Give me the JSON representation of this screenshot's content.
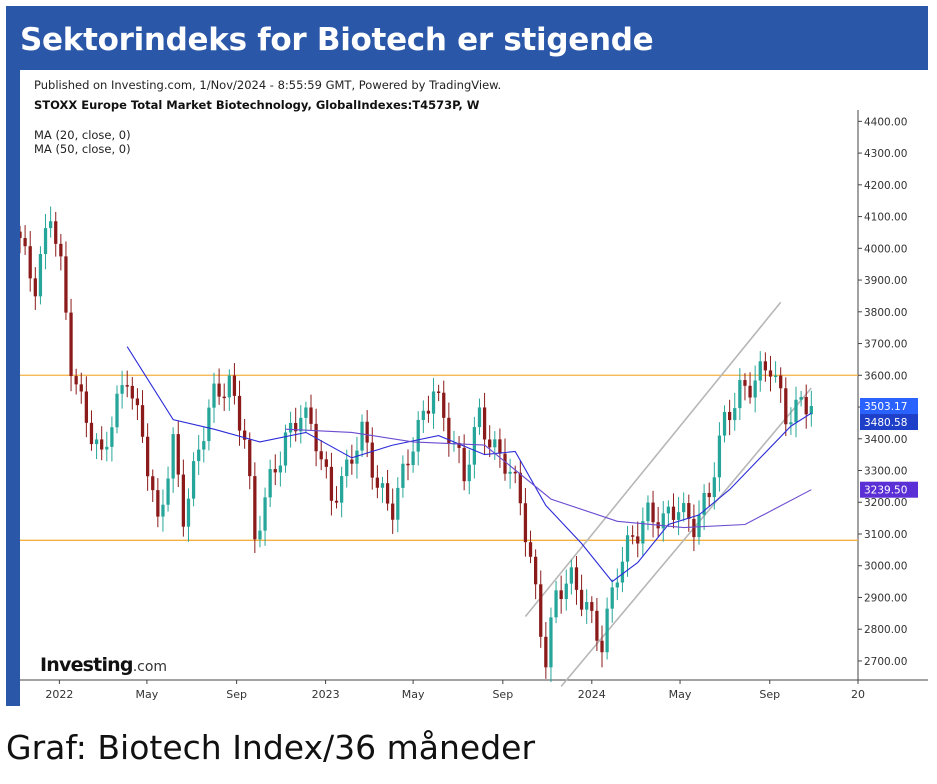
{
  "header": {
    "title": "Sektorindeks for Biotech er stigende"
  },
  "source": {
    "published": "Published on Investing.com, 1/Nov/2024 - 8:55:59 GMT, Powered by TradingView.",
    "symbol": "STOXX Europe Total Market Biotechnology, GlobalIndexes:T4573P, W",
    "indicators": [
      "MA (20, close, 0)",
      "MA (50, close, 0)"
    ],
    "logo_main": "Investing",
    "logo_suffix": ".com"
  },
  "caption": "Graf: Biotech Index/36 måneder",
  "colors": {
    "up": "#26a69a",
    "down": "#8b1a1a",
    "ma20": "#2b2bd9",
    "ma50": "#6b4bd0",
    "hline": "#f5b041",
    "trendline": "#b7b7b7",
    "last_price_tag": "#2962ff",
    "ma20_tag": "#1e40c8",
    "ma50_tag": "#5a2fd6"
  },
  "chart_data": {
    "type": "candlestick",
    "interval": "W",
    "ylim": [
      2640,
      4420
    ],
    "y_axis_position": "right",
    "y_ticks": [
      "4400.00",
      "4300.00",
      "4200.00",
      "4100.00",
      "4000.00",
      "3900.00",
      "3800.00",
      "3700.00",
      "3600.00",
      "3500.00",
      "3400.00",
      "3300.00",
      "3200.00",
      "3100.00",
      "3000.00",
      "2900.00",
      "2800.00",
      "2700.00"
    ],
    "x_range": [
      "2021-11-08",
      "2024-12-31"
    ],
    "x_ticks": [
      {
        "label": "2022",
        "date": "2022-01-01"
      },
      {
        "label": "May",
        "date": "2022-05-01"
      },
      {
        "label": "Sep",
        "date": "2022-09-01"
      },
      {
        "label": "2023",
        "date": "2023-01-01"
      },
      {
        "label": "May",
        "date": "2023-05-01"
      },
      {
        "label": "Sep",
        "date": "2023-09-01"
      },
      {
        "label": "2024",
        "date": "2024-01-01"
      },
      {
        "label": "May",
        "date": "2024-05-01"
      },
      {
        "label": "Sep",
        "date": "2024-09-01"
      },
      {
        "label": "20",
        "date": "2024-12-31"
      }
    ],
    "horizontal_lines": [
      3600,
      3080
    ],
    "channel_lines": [
      {
        "from": [
          "2023-10-02",
          2840
        ],
        "to": [
          "2024-09-16",
          3830
        ]
      },
      {
        "from": [
          "2023-11-20",
          2620
        ],
        "to": [
          "2024-10-28",
          3560
        ]
      }
    ],
    "price_labels": [
      {
        "text": "3503.17",
        "value": 3503.17,
        "role": "last"
      },
      {
        "text": "3480.58",
        "value": 3480.58,
        "role": "ma20"
      },
      {
        "text": "3239.50",
        "value": 3239.5,
        "role": "ma50"
      }
    ],
    "closes": [
      {
        "date": "2021-11-08",
        "close": 4030
      },
      {
        "date": "2021-11-29",
        "close": 3900
      },
      {
        "date": "2021-12-20",
        "close": 4100
      },
      {
        "date": "2022-01-03",
        "close": 3920
      },
      {
        "date": "2022-01-17",
        "close": 3640
      },
      {
        "date": "2022-02-07",
        "close": 3480
      },
      {
        "date": "2022-02-28",
        "close": 3320
      },
      {
        "date": "2022-03-21",
        "close": 3500
      },
      {
        "date": "2022-04-04",
        "close": 3620
      },
      {
        "date": "2022-04-25",
        "close": 3420
      },
      {
        "date": "2022-05-16",
        "close": 3100
      },
      {
        "date": "2022-06-06",
        "close": 3390
      },
      {
        "date": "2022-06-20",
        "close": 3180
      },
      {
        "date": "2022-07-11",
        "close": 3360
      },
      {
        "date": "2022-08-01",
        "close": 3520
      },
      {
        "date": "2022-08-22",
        "close": 3590
      },
      {
        "date": "2022-09-12",
        "close": 3420
      },
      {
        "date": "2022-09-26",
        "close": 3060
      },
      {
        "date": "2022-10-17",
        "close": 3260
      },
      {
        "date": "2022-11-07",
        "close": 3420
      },
      {
        "date": "2022-11-28",
        "close": 3480
      },
      {
        "date": "2022-12-19",
        "close": 3380
      },
      {
        "date": "2023-01-09",
        "close": 3230
      },
      {
        "date": "2023-01-30",
        "close": 3310
      },
      {
        "date": "2023-02-20",
        "close": 3400
      },
      {
        "date": "2023-03-13",
        "close": 3260
      },
      {
        "date": "2023-04-03",
        "close": 3200
      },
      {
        "date": "2023-04-24",
        "close": 3320
      },
      {
        "date": "2023-05-15",
        "close": 3460
      },
      {
        "date": "2023-05-29",
        "close": 3580
      },
      {
        "date": "2023-06-19",
        "close": 3430
      },
      {
        "date": "2023-07-10",
        "close": 3260
      },
      {
        "date": "2023-07-31",
        "close": 3480
      },
      {
        "date": "2023-08-21",
        "close": 3380
      },
      {
        "date": "2023-09-04",
        "close": 3320
      },
      {
        "date": "2023-09-25",
        "close": 3190
      },
      {
        "date": "2023-10-16",
        "close": 2930
      },
      {
        "date": "2023-10-30",
        "close": 2720
      },
      {
        "date": "2023-11-13",
        "close": 2900
      },
      {
        "date": "2023-12-04",
        "close": 2940
      },
      {
        "date": "2023-12-25",
        "close": 2890
      },
      {
        "date": "2024-01-15",
        "close": 2760
      },
      {
        "date": "2024-02-05",
        "close": 2960
      },
      {
        "date": "2024-02-26",
        "close": 3100
      },
      {
        "date": "2024-03-18",
        "close": 3180
      },
      {
        "date": "2024-04-08",
        "close": 3120
      },
      {
        "date": "2024-04-29",
        "close": 3180
      },
      {
        "date": "2024-05-20",
        "close": 3150
      },
      {
        "date": "2024-06-10",
        "close": 3220
      },
      {
        "date": "2024-07-01",
        "close": 3440
      },
      {
        "date": "2024-07-22",
        "close": 3570
      },
      {
        "date": "2024-08-12",
        "close": 3590
      },
      {
        "date": "2024-09-02",
        "close": 3610
      },
      {
        "date": "2024-09-23",
        "close": 3480
      },
      {
        "date": "2024-10-14",
        "close": 3530
      },
      {
        "date": "2024-10-28",
        "close": 3503.17
      }
    ],
    "series": [
      {
        "name": "MA (20, close, 0)",
        "values": [
          {
            "date": "2022-04-04",
            "value": 3690
          },
          {
            "date": "2022-06-06",
            "value": 3460
          },
          {
            "date": "2022-08-01",
            "value": 3430
          },
          {
            "date": "2022-10-03",
            "value": 3390
          },
          {
            "date": "2022-12-05",
            "value": 3420
          },
          {
            "date": "2023-02-06",
            "value": 3340
          },
          {
            "date": "2023-04-03",
            "value": 3380
          },
          {
            "date": "2023-06-05",
            "value": 3410
          },
          {
            "date": "2023-08-07",
            "value": 3350
          },
          {
            "date": "2023-09-18",
            "value": 3360
          },
          {
            "date": "2023-10-30",
            "value": 3190
          },
          {
            "date": "2023-12-18",
            "value": 3070
          },
          {
            "date": "2024-01-29",
            "value": 2950
          },
          {
            "date": "2024-03-04",
            "value": 3010
          },
          {
            "date": "2024-04-15",
            "value": 3130
          },
          {
            "date": "2024-05-27",
            "value": 3160
          },
          {
            "date": "2024-07-08",
            "value": 3240
          },
          {
            "date": "2024-08-19",
            "value": 3340
          },
          {
            "date": "2024-09-30",
            "value": 3440
          },
          {
            "date": "2024-10-28",
            "value": 3480.58
          }
        ]
      },
      {
        "name": "MA (50, close, 0)",
        "values": [
          {
            "date": "2022-11-07",
            "value": 3430
          },
          {
            "date": "2023-02-06",
            "value": 3420
          },
          {
            "date": "2023-05-01",
            "value": 3390
          },
          {
            "date": "2023-08-07",
            "value": 3380
          },
          {
            "date": "2023-11-06",
            "value": 3210
          },
          {
            "date": "2024-02-05",
            "value": 3140
          },
          {
            "date": "2024-05-06",
            "value": 3120
          },
          {
            "date": "2024-07-29",
            "value": 3130
          },
          {
            "date": "2024-10-28",
            "value": 3239.5
          }
        ]
      }
    ]
  }
}
